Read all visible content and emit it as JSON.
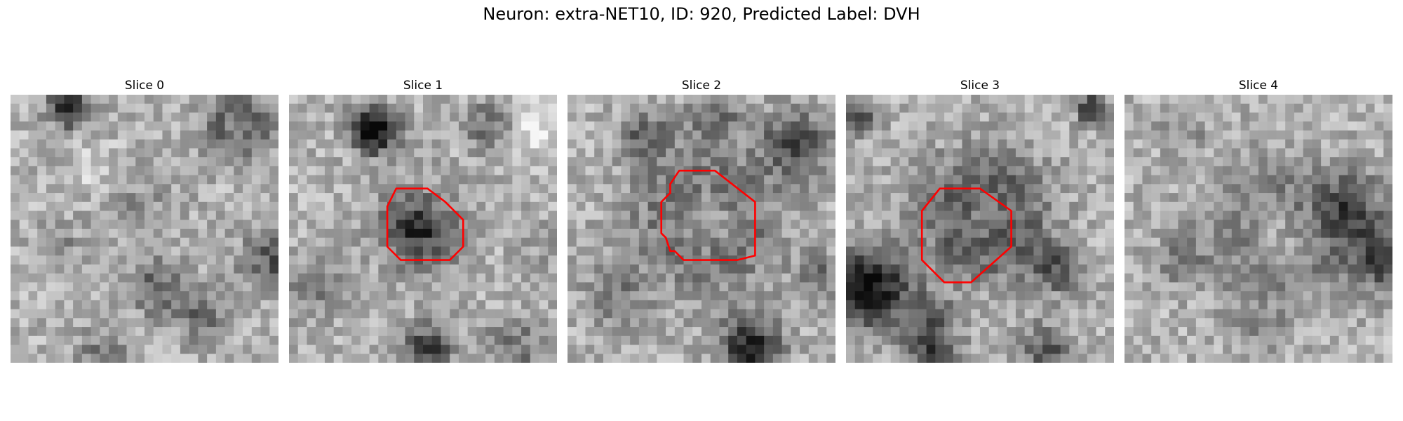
{
  "figure": {
    "title": "Neuron: extra-NET10, ID: 920, Predicted Label: DVH",
    "outline_color": "#ff0000",
    "panels": [
      {
        "title": "Slice 0",
        "has_outline": false
      },
      {
        "title": "Slice 1",
        "has_outline": true
      },
      {
        "title": "Slice 2",
        "has_outline": true
      },
      {
        "title": "Slice 3",
        "has_outline": true
      },
      {
        "title": "Slice 4",
        "has_outline": false
      }
    ]
  }
}
